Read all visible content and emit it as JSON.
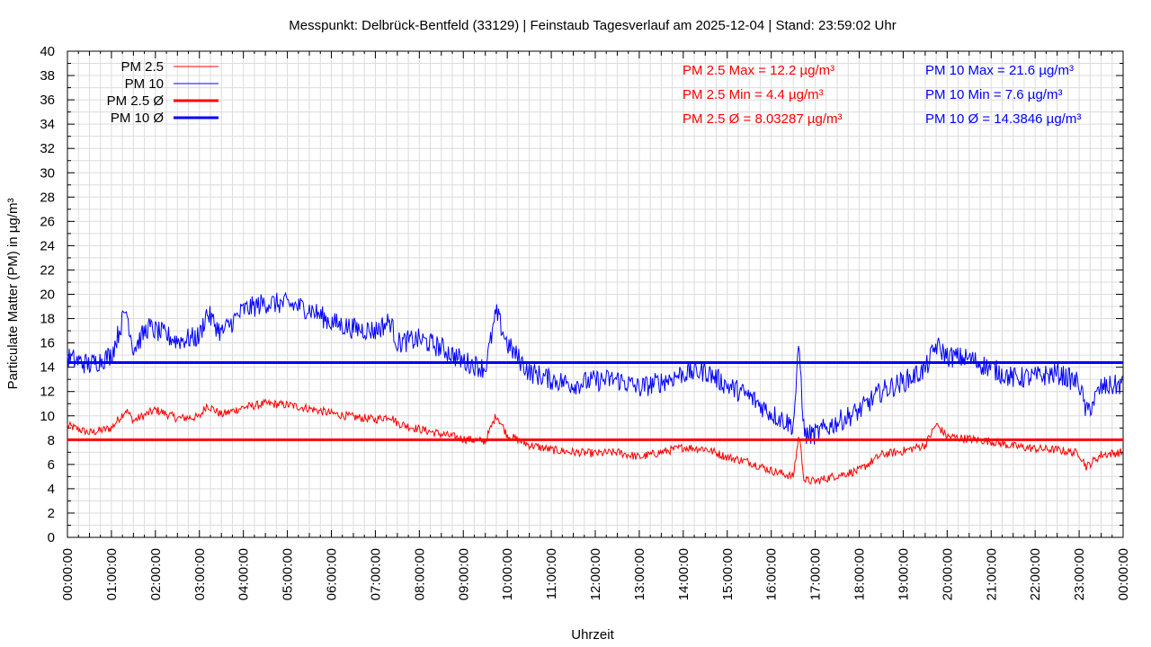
{
  "chart_data": {
    "type": "line",
    "title": "Messpunkt: Delbrück-Bentfeld (33129) | Feinstaub Tagesverlauf am 2025-12-04 | Stand: 23:59:02 Uhr",
    "xlabel": "Uhrzeit",
    "ylabel": "Particulate Matter (PM) in µg/m³",
    "ylim": [
      0,
      40
    ],
    "yticks": [
      0,
      2,
      4,
      6,
      8,
      10,
      12,
      14,
      16,
      18,
      20,
      22,
      24,
      26,
      28,
      30,
      32,
      34,
      36,
      38,
      40
    ],
    "xlim": [
      "00:00:00",
      "24:00:00"
    ],
    "xticks": [
      "00:00:00",
      "01:00:00",
      "02:00:00",
      "03:00:00",
      "04:00:00",
      "05:00:00",
      "06:00:00",
      "07:00:00",
      "08:00:00",
      "09:00:00",
      "10:00:00",
      "11:00:00",
      "12:00:00",
      "13:00:00",
      "14:00:00",
      "15:00:00",
      "16:00:00",
      "17:00:00",
      "18:00:00",
      "19:00:00",
      "20:00:00",
      "21:00:00",
      "22:00:00",
      "23:00:00",
      "00:00:00"
    ],
    "grid": true,
    "legend_position": "top-left",
    "legend": [
      "PM 2.5",
      "PM 10",
      "PM 2.5 Ø",
      "PM 10 Ø"
    ],
    "series": [
      {
        "name": "PM 2.5",
        "color": "#ff0000",
        "x": [
          "00:00",
          "00:30",
          "01:00",
          "01:20",
          "01:30",
          "01:50",
          "02:00",
          "02:30",
          "03:00",
          "03:10",
          "03:30",
          "04:00",
          "04:30",
          "05:00",
          "05:30",
          "06:00",
          "06:30",
          "07:00",
          "07:20",
          "07:30",
          "08:00",
          "08:30",
          "09:00",
          "09:30",
          "09:45",
          "10:00",
          "10:30",
          "11:00",
          "11:30",
          "12:00",
          "12:30",
          "13:00",
          "13:30",
          "14:00",
          "14:30",
          "15:00",
          "15:30",
          "16:00",
          "16:30",
          "16:38",
          "16:45",
          "17:00",
          "17:30",
          "18:00",
          "18:30",
          "19:00",
          "19:30",
          "19:45",
          "20:00",
          "20:30",
          "21:00",
          "21:30",
          "22:00",
          "22:30",
          "23:00",
          "23:10",
          "23:30",
          "24:00"
        ],
        "y": [
          9.2,
          8.6,
          9.0,
          10.5,
          9.6,
          10.2,
          10.5,
          9.8,
          9.9,
          10.9,
          10.1,
          10.7,
          11.0,
          10.9,
          10.6,
          10.2,
          9.9,
          9.7,
          10.0,
          9.4,
          8.9,
          8.5,
          8.1,
          7.9,
          10.1,
          8.4,
          7.6,
          7.2,
          7.0,
          6.9,
          7.0,
          6.6,
          7.0,
          7.4,
          7.3,
          6.6,
          6.2,
          5.5,
          5.0,
          8.5,
          4.7,
          4.6,
          5.1,
          5.5,
          6.8,
          7.1,
          7.6,
          9.3,
          8.3,
          8.1,
          7.9,
          7.5,
          7.3,
          7.2,
          6.9,
          5.8,
          6.8,
          7.0
        ]
      },
      {
        "name": "PM 10",
        "color": "#0000ff",
        "x": [
          "00:00",
          "00:30",
          "01:00",
          "01:20",
          "01:30",
          "01:50",
          "02:00",
          "02:30",
          "03:00",
          "03:10",
          "03:30",
          "04:00",
          "04:30",
          "05:00",
          "05:30",
          "06:00",
          "06:30",
          "07:00",
          "07:20",
          "07:30",
          "08:00",
          "08:30",
          "09:00",
          "09:30",
          "09:45",
          "10:00",
          "10:30",
          "11:00",
          "11:30",
          "12:00",
          "12:30",
          "13:00",
          "13:30",
          "14:00",
          "14:30",
          "15:00",
          "15:30",
          "16:00",
          "16:30",
          "16:38",
          "16:45",
          "17:00",
          "17:30",
          "18:00",
          "18:30",
          "19:00",
          "19:30",
          "19:45",
          "20:00",
          "20:30",
          "21:00",
          "21:30",
          "22:00",
          "22:30",
          "23:00",
          "23:10",
          "23:30",
          "24:00"
        ],
        "y": [
          14.8,
          14.2,
          15.0,
          18.8,
          15.5,
          17.3,
          17.0,
          16.2,
          16.5,
          18.5,
          16.8,
          18.7,
          19.3,
          19.2,
          18.8,
          17.7,
          17.2,
          17.0,
          17.8,
          16.0,
          16.3,
          15.6,
          14.5,
          13.9,
          18.5,
          15.9,
          13.6,
          13.0,
          12.6,
          12.9,
          13.0,
          12.3,
          12.8,
          13.5,
          13.7,
          12.5,
          11.6,
          10.2,
          9.2,
          15.8,
          8.4,
          8.5,
          9.5,
          10.4,
          12.0,
          12.8,
          13.8,
          15.8,
          14.9,
          14.7,
          13.9,
          13.1,
          13.2,
          13.5,
          12.7,
          10.2,
          12.3,
          12.6
        ]
      },
      {
        "name": "PM 2.5 Ø",
        "color": "#ff0000",
        "constant": 8.03287
      },
      {
        "name": "PM 10 Ø",
        "color": "#0000ff",
        "constant": 14.3846
      }
    ],
    "annotations": [
      {
        "text": "PM 2.5 Max = 12.2 µg/m³",
        "color": "#ff0000"
      },
      {
        "text": "PM 2.5 Min = 4.4 µg/m³",
        "color": "#ff0000"
      },
      {
        "text": "PM 2.5 Ø = 8.03287 µg/m³",
        "color": "#ff0000"
      },
      {
        "text": "PM 10 Max = 21.6 µg/m³",
        "color": "#0000ff"
      },
      {
        "text": "PM 10 Min = 7.6 µg/m³",
        "color": "#0000ff"
      },
      {
        "text": "PM 10 Ø = 14.3846 µg/m³",
        "color": "#0000ff"
      }
    ]
  }
}
